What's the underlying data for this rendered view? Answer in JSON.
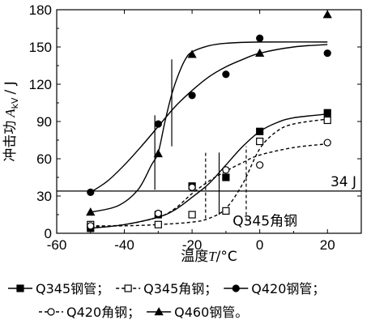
{
  "chart_data": {
    "type": "scatter",
    "xlabel_prefix": "温度",
    "xlabel_var": "T",
    "xlabel_unit": "/°C",
    "ylabel_prefix": "冲击功",
    "ylabel_var": "A",
    "ylabel_sub": "kV",
    "ylabel_unit": "/ J",
    "xlim": [
      -60,
      30
    ],
    "ylim": [
      0,
      180
    ],
    "xticks": [
      -60,
      -40,
      -20,
      0,
      20
    ],
    "yticks": [
      0,
      30,
      60,
      90,
      120,
      150,
      180
    ],
    "reference_line": {
      "y": 34,
      "label": "34 J"
    },
    "annotation": {
      "text": "Q345角钢",
      "x": -8,
      "y": 10
    },
    "series": [
      {
        "name": "Q345钢管",
        "marker": "square-filled",
        "line": "solid",
        "points": [
          [
            -50,
            4
          ],
          [
            -30,
            15
          ],
          [
            -20,
            38
          ],
          [
            -10,
            45
          ],
          [
            0,
            82
          ],
          [
            20,
            97
          ]
        ],
        "curve": [
          [
            -50,
            4
          ],
          [
            -40,
            7
          ],
          [
            -30,
            13
          ],
          [
            -25,
            19
          ],
          [
            -20,
            29
          ],
          [
            -15,
            40
          ],
          [
            -10,
            55
          ],
          [
            -5,
            70
          ],
          [
            0,
            82
          ],
          [
            5,
            89
          ],
          [
            10,
            93
          ],
          [
            20,
            96
          ]
        ],
        "transition": {
          "x": -12,
          "y1": 15,
          "y2": 65
        }
      },
      {
        "name": "Q345角钢",
        "marker": "square-open",
        "line": "dashed",
        "points": [
          [
            -50,
            7
          ],
          [
            -30,
            7
          ],
          [
            -20,
            15
          ],
          [
            -10,
            18
          ],
          [
            0,
            74
          ],
          [
            20,
            91
          ]
        ],
        "curve": [
          [
            -50,
            6
          ],
          [
            -40,
            6
          ],
          [
            -30,
            7
          ],
          [
            -20,
            9
          ],
          [
            -15,
            12
          ],
          [
            -10,
            20
          ],
          [
            -5,
            40
          ],
          [
            0,
            68
          ],
          [
            5,
            82
          ],
          [
            10,
            88
          ],
          [
            20,
            92
          ]
        ],
        "transition": {
          "x": -4,
          "y1": 10,
          "y2": 70
        }
      },
      {
        "name": "Q420钢管",
        "marker": "circle-filled",
        "line": "solid",
        "points": [
          [
            -50,
            33
          ],
          [
            -30,
            88
          ],
          [
            -20,
            111
          ],
          [
            -10,
            128
          ],
          [
            0,
            157
          ],
          [
            20,
            145
          ]
        ],
        "curve": [
          [
            -50,
            33
          ],
          [
            -45,
            42
          ],
          [
            -40,
            55
          ],
          [
            -35,
            70
          ],
          [
            -30,
            86
          ],
          [
            -25,
            102
          ],
          [
            -20,
            115
          ],
          [
            -15,
            126
          ],
          [
            -10,
            134
          ],
          [
            -5,
            140
          ],
          [
            0,
            145
          ],
          [
            10,
            150
          ],
          [
            20,
            152
          ]
        ],
        "transition": {
          "x": -26,
          "y1": 70,
          "y2": 140
        }
      },
      {
        "name": "Q420角钢",
        "marker": "circle-open",
        "line": "dashed",
        "points": [
          [
            -50,
            6
          ],
          [
            -30,
            16
          ],
          [
            -20,
            37
          ],
          [
            -10,
            51
          ],
          [
            0,
            55
          ],
          [
            20,
            73
          ]
        ],
        "curve": [
          [
            -50,
            5
          ],
          [
            -40,
            7
          ],
          [
            -30,
            13
          ],
          [
            -25,
            20
          ],
          [
            -20,
            32
          ],
          [
            -15,
            42
          ],
          [
            -10,
            50
          ],
          [
            -5,
            57
          ],
          [
            0,
            63
          ],
          [
            10,
            69
          ],
          [
            20,
            72
          ]
        ],
        "transition": {
          "x": -16,
          "y1": 12,
          "y2": 65
        }
      },
      {
        "name": "Q460钢管",
        "marker": "triangle-filled",
        "line": "solid",
        "points": [
          [
            -50,
            17
          ],
          [
            -30,
            64
          ],
          [
            -20,
            144
          ],
          [
            0,
            145
          ],
          [
            20,
            176
          ]
        ],
        "curve": [
          [
            -50,
            17
          ],
          [
            -42,
            22
          ],
          [
            -36,
            35
          ],
          [
            -32,
            55
          ],
          [
            -30,
            65
          ],
          [
            -28,
            90
          ],
          [
            -26,
            112
          ],
          [
            -24,
            128
          ],
          [
            -22,
            140
          ],
          [
            -20,
            146
          ],
          [
            -15,
            151
          ],
          [
            -10,
            153
          ],
          [
            0,
            154
          ],
          [
            20,
            154
          ]
        ],
        "transition": {
          "x": -31,
          "y1": 35,
          "y2": 95
        }
      }
    ],
    "legend": {
      "separator": "；",
      "end": "。"
    }
  }
}
